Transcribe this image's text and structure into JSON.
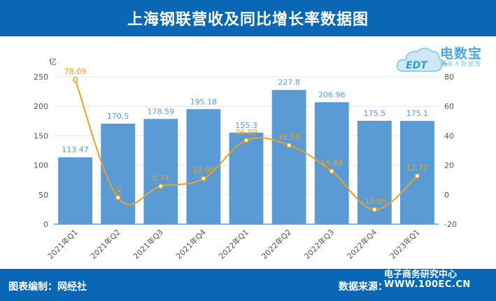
{
  "header": {
    "title": "上海钢联营收及同比增长率数据图"
  },
  "footer": {
    "left": "图表编制：网经社",
    "right": "数据来源：",
    "watermark_line1": "电子商务研究中心",
    "watermark_line2": "WWW.100EC.CN"
  },
  "logo": {
    "text": "电数宝",
    "sub": "电商大数据库",
    "badge": "EDT"
  },
  "colors": {
    "bar": "#5b9bd5",
    "line": "#e8a324",
    "header": "#0a67b5"
  },
  "chart_data": {
    "type": "bar",
    "categories": [
      "2021年Q1",
      "2021年Q2",
      "2021年Q3",
      "2021年Q4",
      "2022年Q1",
      "2022年Q2",
      "2022年Q3",
      "2022年Q4",
      "2023年Q1"
    ],
    "series": [
      {
        "values": [
          113.47,
          170.5,
          178.59,
          195.18,
          155.3,
          227.8,
          206.96,
          175.5,
          175.1
        ],
        "labels": [
          "113.47",
          "170.5",
          "178.59",
          "195.18",
          "155.3",
          "227.8",
          "206.96",
          "175.5",
          "175.1"
        ],
        "type": "bar",
        "axis": "left"
      },
      {
        "values": [
          78.09,
          -2,
          5.74,
          10.95,
          36.89,
          33.54,
          15.88,
          -10.05,
          12.72
        ],
        "labels": [
          "78.09",
          "-2",
          "5.74",
          "10.95",
          "36.89",
          "33.54",
          "15.88",
          "-10.05",
          "12.72"
        ],
        "type": "line",
        "axis": "right"
      }
    ],
    "ylabel": "亿",
    "ylabel_right": "%",
    "ylim": [
      0,
      250
    ],
    "yticks": [
      0,
      50,
      100,
      150,
      200,
      250
    ],
    "ylim_right": [
      -20,
      80
    ],
    "yticks_right": [
      -20,
      0,
      20,
      40,
      60,
      80
    ],
    "grid": true
  }
}
